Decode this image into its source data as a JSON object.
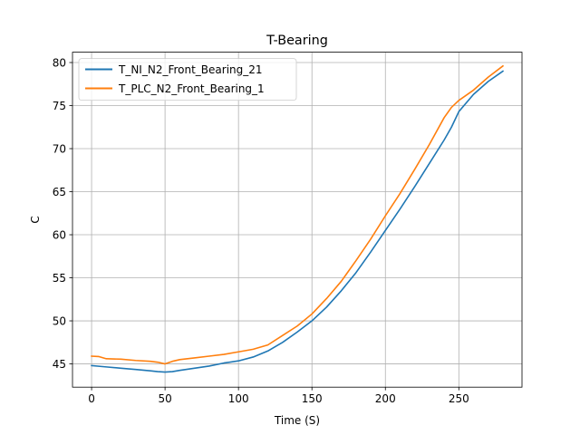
{
  "chart_data": {
    "type": "line",
    "title": "T-Bearing",
    "xlabel": "Time (S)",
    "ylabel": "C",
    "xlim": [
      -13,
      293
    ],
    "ylim": [
      42.3,
      81.2
    ],
    "xticks": [
      0,
      50,
      100,
      150,
      200,
      250
    ],
    "yticks": [
      45,
      50,
      55,
      60,
      65,
      70,
      75,
      80
    ],
    "grid": true,
    "legend_position": "upper-left",
    "series": [
      {
        "name": "T_NI_N2_Front_Bearing_21",
        "color": "#1f77b4",
        "x": [
          0,
          10,
          20,
          30,
          40,
          45,
          50,
          55,
          60,
          70,
          80,
          90,
          100,
          110,
          120,
          130,
          140,
          150,
          160,
          170,
          180,
          190,
          200,
          210,
          220,
          230,
          240,
          245,
          250,
          260,
          270,
          280
        ],
        "y": [
          44.8,
          44.65,
          44.5,
          44.35,
          44.2,
          44.1,
          44.05,
          44.1,
          44.25,
          44.5,
          44.75,
          45.1,
          45.35,
          45.8,
          46.5,
          47.5,
          48.7,
          50.0,
          51.6,
          53.5,
          55.6,
          58.0,
          60.5,
          63.0,
          65.6,
          68.3,
          71.0,
          72.5,
          74.3,
          76.3,
          77.8,
          79.0
        ]
      },
      {
        "name": "T_PLC_N2_Front_Bearing_1",
        "color": "#ff7f0e",
        "x": [
          0,
          5,
          10,
          20,
          30,
          40,
          45,
          50,
          55,
          60,
          70,
          80,
          90,
          100,
          110,
          120,
          130,
          140,
          150,
          160,
          170,
          180,
          190,
          200,
          210,
          220,
          230,
          240,
          245,
          250,
          260,
          270,
          280
        ],
        "y": [
          45.9,
          45.85,
          45.6,
          45.55,
          45.4,
          45.3,
          45.2,
          45.0,
          45.3,
          45.5,
          45.7,
          45.9,
          46.1,
          46.4,
          46.7,
          47.2,
          48.3,
          49.4,
          50.8,
          52.6,
          54.6,
          57.0,
          59.5,
          62.2,
          64.8,
          67.6,
          70.5,
          73.6,
          74.8,
          75.6,
          76.8,
          78.3,
          79.6
        ]
      }
    ]
  }
}
